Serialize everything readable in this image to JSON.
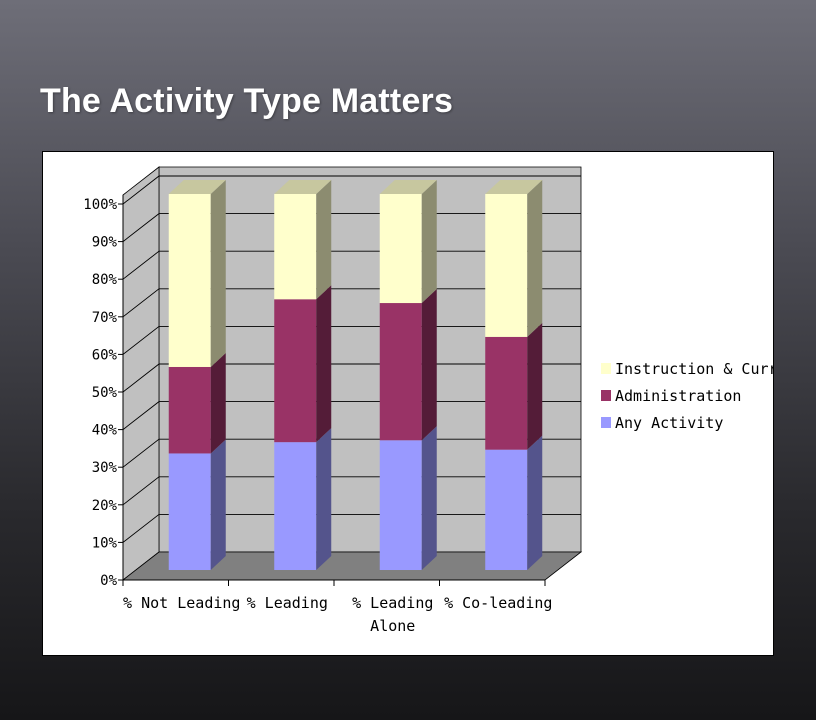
{
  "slide": {
    "title": "The Activity Type Matters"
  },
  "chart_data": {
    "type": "bar",
    "stacked": true,
    "percent_stacked": true,
    "categories": [
      "% Not Leading",
      "% Leading",
      "% Leading Alone",
      "% Co-leading"
    ],
    "category_label_lines": [
      [
        "% Not Leading"
      ],
      [
        "% Leading"
      ],
      [
        "% Leading",
        "Alone"
      ],
      [
        "% Co-leading"
      ]
    ],
    "series": [
      {
        "name": "Any Activity",
        "values": [
          31,
          34,
          34.5,
          32
        ]
      },
      {
        "name": "Administration",
        "values": [
          23,
          38,
          36.5,
          30
        ]
      },
      {
        "name": "Instruction & Curri",
        "values": [
          46,
          28,
          29,
          38
        ]
      }
    ],
    "colors": {
      "Any Activity": "#9999ff",
      "Administration": "#993366",
      "Instruction & Curri": "#ffffcc"
    },
    "y_tick_labels": [
      "0%",
      "10%",
      "20%",
      "30%",
      "40%",
      "50%",
      "60%",
      "70%",
      "80%",
      "90%",
      "100%"
    ],
    "ylim": [
      0,
      100
    ],
    "grid": true,
    "legend": "right",
    "three_d": true,
    "title": "",
    "xlabel": "",
    "ylabel": ""
  }
}
